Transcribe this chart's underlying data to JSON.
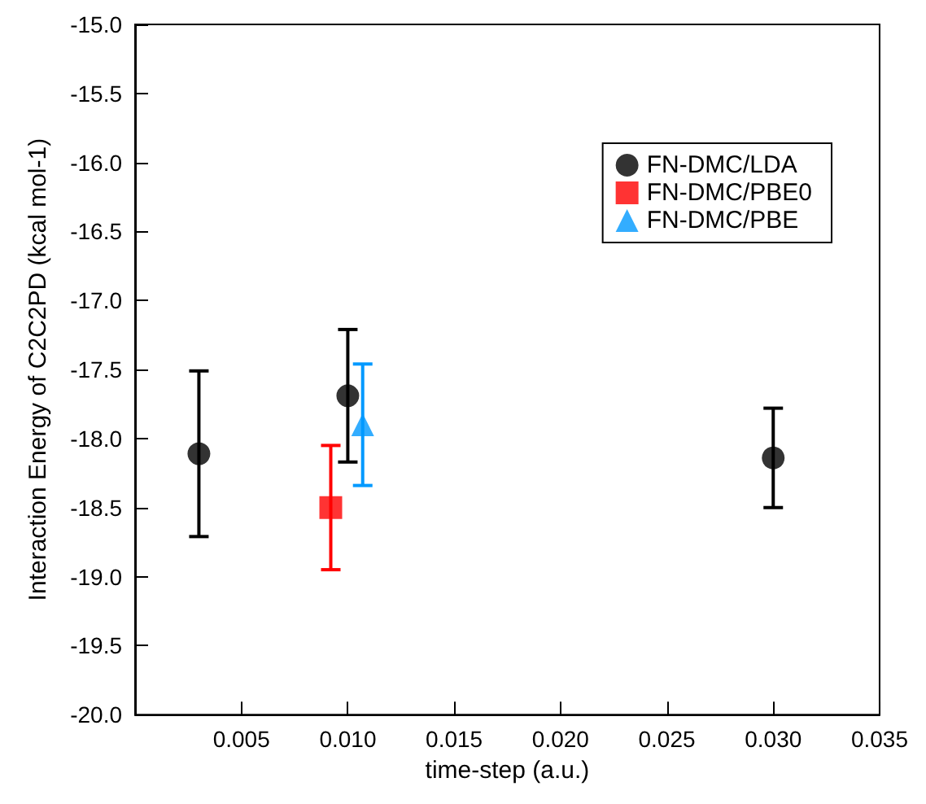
{
  "chart_data": {
    "type": "scatter",
    "xlabel": "time-step (a.u.)",
    "ylabel": "Interaction Energy of C2C2PD (kcal mol-1)",
    "xlim": [
      0,
      0.035
    ],
    "ylim": [
      -20,
      -15
    ],
    "xticks": [
      {
        "value": 0.005,
        "label": "0.005"
      },
      {
        "value": 0.01,
        "label": "0.010"
      },
      {
        "value": 0.015,
        "label": "0.015"
      },
      {
        "value": 0.02,
        "label": "0.020"
      },
      {
        "value": 0.025,
        "label": "0.025"
      },
      {
        "value": 0.03,
        "label": "0.030"
      },
      {
        "value": 0.035,
        "label": "0.035"
      }
    ],
    "yticks": [
      {
        "value": -20,
        "label": "-20.0"
      },
      {
        "value": -19.5,
        "label": "-19.5"
      },
      {
        "value": -19,
        "label": "-19.0"
      },
      {
        "value": -18.5,
        "label": "-18.5"
      },
      {
        "value": -18,
        "label": "-18.0"
      },
      {
        "value": -17.5,
        "label": "-17.5"
      },
      {
        "value": -17,
        "label": "-17.0"
      },
      {
        "value": -16.5,
        "label": "-16.5"
      },
      {
        "value": -16,
        "label": "-16.0"
      },
      {
        "value": -15.5,
        "label": "-15.5"
      },
      {
        "value": -15,
        "label": "-15.0"
      }
    ],
    "grid": false,
    "legend": "top right",
    "series": [
      {
        "name": "FN-DMC/LDA",
        "color": "#000000",
        "marker": "circle",
        "x": [
          0.003,
          0.01,
          0.03
        ],
        "values": [
          -18.11,
          -17.69,
          -18.14
        ],
        "errors": [
          0.6,
          0.48,
          0.36
        ]
      },
      {
        "name": "FN-DMC/PBE0",
        "color": "#ff0000",
        "marker": "square",
        "x": [
          0.0092
        ],
        "values": [
          -18.5
        ],
        "errors": [
          0.45
        ]
      },
      {
        "name": "FN-DMC/PBE",
        "color": "#0099ff",
        "marker": "triangle",
        "x": [
          0.0107
        ],
        "values": [
          -17.9
        ],
        "errors": [
          0.44
        ]
      }
    ]
  }
}
